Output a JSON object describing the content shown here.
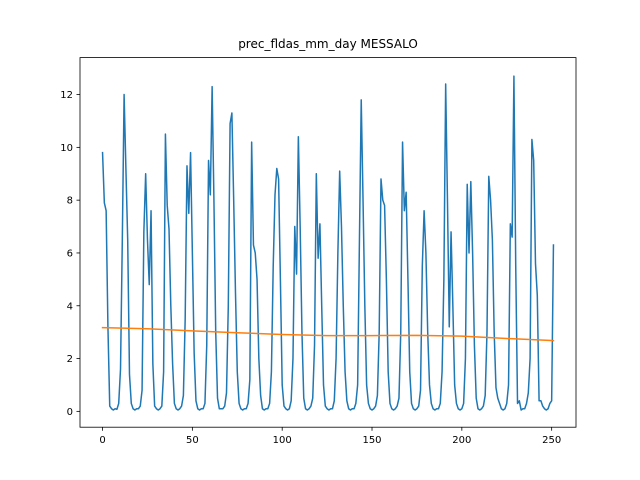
{
  "chart_data": {
    "type": "line",
    "title": "prec_fldas_mm_day MESSALO",
    "xlim": [
      -12.55,
      263.55
    ],
    "xticks": [
      0,
      50,
      100,
      150,
      200,
      250
    ],
    "ylim": [
      -0.6,
      13.4
    ],
    "yticks": [
      0,
      2,
      4,
      6,
      8,
      10,
      12
    ],
    "series": [
      {
        "color": "#1f77b4",
        "values": [
          9.8,
          7.9,
          7.6,
          3.2,
          0.2,
          0.1,
          0.05,
          0.1,
          0.08,
          0.3,
          1.6,
          6.5,
          12.0,
          9.2,
          6.5,
          1.4,
          0.3,
          0.1,
          0.05,
          0.1,
          0.1,
          0.2,
          0.8,
          6.8,
          9.0,
          6.5,
          4.8,
          7.6,
          1.8,
          0.2,
          0.1,
          0.05,
          0.1,
          0.2,
          1.5,
          10.5,
          7.8,
          6.9,
          4.0,
          1.8,
          0.3,
          0.1,
          0.05,
          0.1,
          0.2,
          0.6,
          3.5,
          9.3,
          7.5,
          9.8,
          6.0,
          2.2,
          0.4,
          0.1,
          0.05,
          0.1,
          0.1,
          0.3,
          2.5,
          9.5,
          8.2,
          12.3,
          8.0,
          3.0,
          0.5,
          0.1,
          0.1,
          0.1,
          0.2,
          0.7,
          4.0,
          10.9,
          11.3,
          8.0,
          4.5,
          1.5,
          0.3,
          0.1,
          0.05,
          0.1,
          0.1,
          0.3,
          1.2,
          10.2,
          6.3,
          6.0,
          5.0,
          2.0,
          0.6,
          0.1,
          0.05,
          0.1,
          0.1,
          0.3,
          1.5,
          5.5,
          8.2,
          9.2,
          8.8,
          5.0,
          1.0,
          0.2,
          0.1,
          0.05,
          0.1,
          0.4,
          2.0,
          7.0,
          5.2,
          10.4,
          7.0,
          3.0,
          0.5,
          0.1,
          0.05,
          0.1,
          0.2,
          0.5,
          2.5,
          9.0,
          5.8,
          7.1,
          4.0,
          1.0,
          0.2,
          0.1,
          0.05,
          0.1,
          0.1,
          0.4,
          2.0,
          6.0,
          9.1,
          7.0,
          4.0,
          1.5,
          0.4,
          0.1,
          0.05,
          0.1,
          0.1,
          0.3,
          1.0,
          6.5,
          11.8,
          8.0,
          4.0,
          1.0,
          0.3,
          0.1,
          0.05,
          0.1,
          0.2,
          0.6,
          3.0,
          8.8,
          8.0,
          7.8,
          5.0,
          1.5,
          0.3,
          0.1,
          0.05,
          0.1,
          0.2,
          0.5,
          3.0,
          10.2,
          7.6,
          8.3,
          5.0,
          1.5,
          0.3,
          0.1,
          0.05,
          0.1,
          0.2,
          0.8,
          5.5,
          7.6,
          6.0,
          3.0,
          1.0,
          0.3,
          0.1,
          0.05,
          0.1,
          0.1,
          0.3,
          1.5,
          5.0,
          12.4,
          8.0,
          3.2,
          6.8,
          4.0,
          1.0,
          0.3,
          0.1,
          0.05,
          0.1,
          0.3,
          2.0,
          8.6,
          6.0,
          8.7,
          6.0,
          2.5,
          0.5,
          0.1,
          0.05,
          0.1,
          0.2,
          0.6,
          3.0,
          8.9,
          8.0,
          6.5,
          3.0,
          0.9,
          0.5,
          0.3,
          0.1,
          0.05,
          0.1,
          0.3,
          1.0,
          7.1,
          6.6,
          12.7,
          5.5,
          0.3,
          0.4,
          0.05,
          0.1,
          0.1,
          0.3,
          0.7,
          2.0,
          10.3,
          9.5,
          5.6,
          4.4,
          0.4,
          0.4,
          0.2,
          0.1,
          0.05,
          0.1,
          0.3,
          0.4,
          6.3
        ]
      },
      {
        "color": "#ff7f0e",
        "x": [
          0,
          25,
          50,
          75,
          100,
          125,
          150,
          175,
          200,
          225,
          251
        ],
        "values": [
          3.17,
          3.13,
          3.05,
          2.98,
          2.91,
          2.87,
          2.87,
          2.88,
          2.85,
          2.76,
          2.68
        ]
      }
    ]
  }
}
